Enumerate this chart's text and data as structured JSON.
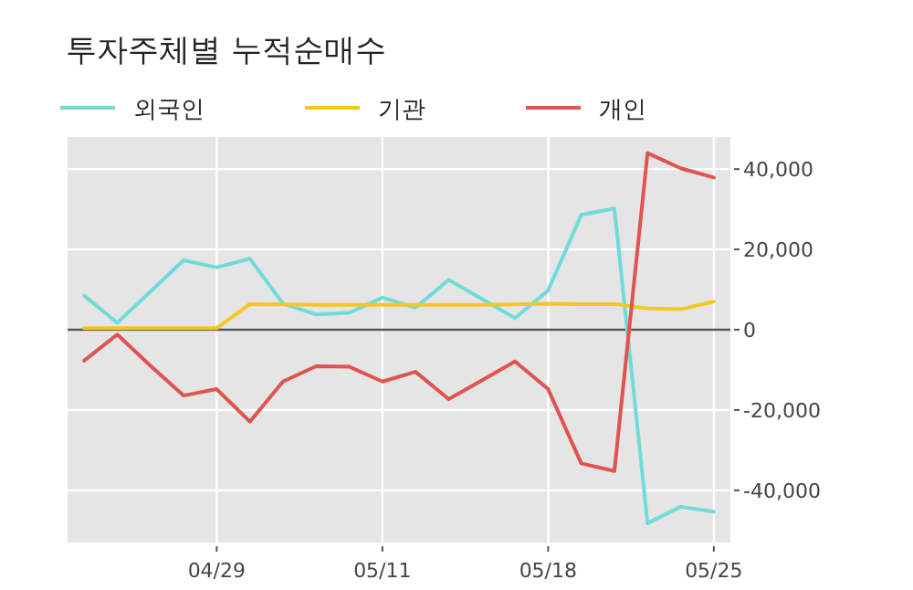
{
  "chart_data": {
    "type": "line",
    "title": "투자주체별 누적순매수",
    "categories": [
      null,
      null,
      null,
      null,
      "04/29",
      null,
      null,
      null,
      null,
      "05/11",
      null,
      null,
      null,
      null,
      "05/18",
      null,
      null,
      null,
      null,
      "05/25"
    ],
    "series": [
      {
        "name": "외국인",
        "color": "#6fdcd8",
        "values": [
          8500,
          1700,
          9500,
          17300,
          15500,
          17700,
          6500,
          3800,
          4200,
          8000,
          5500,
          12400,
          7700,
          2900,
          9800,
          28600,
          30200,
          -48200,
          -44100,
          -45300
        ]
      },
      {
        "name": "기관",
        "color": "#f5c723",
        "values": [
          400,
          400,
          400,
          400,
          400,
          6400,
          6300,
          6200,
          6200,
          6200,
          6200,
          6200,
          6200,
          6300,
          6500,
          6400,
          6400,
          5300,
          5100,
          7000
        ]
      },
      {
        "name": "개인",
        "color": "#e0534f",
        "values": [
          -7700,
          -1200,
          -9000,
          -16400,
          -14800,
          -22900,
          -12900,
          -9100,
          -9200,
          -12900,
          -10500,
          -17300,
          -12600,
          -7900,
          -14800,
          -33300,
          -35200,
          44000,
          40200,
          37900
        ]
      }
    ],
    "ylim": [
      -53000,
      48000
    ],
    "yticks": [
      {
        "value": -40000,
        "label": "-40,000"
      },
      {
        "value": -20000,
        "label": "-20,000"
      },
      0,
      {
        "value": 20000,
        "label": "20,000"
      },
      {
        "value": 40000,
        "label": "40,000"
      }
    ],
    "ref_lines": [
      {
        "axis": "y",
        "value": 0,
        "color": "#555555"
      }
    ],
    "grid": true,
    "legend": "top"
  }
}
